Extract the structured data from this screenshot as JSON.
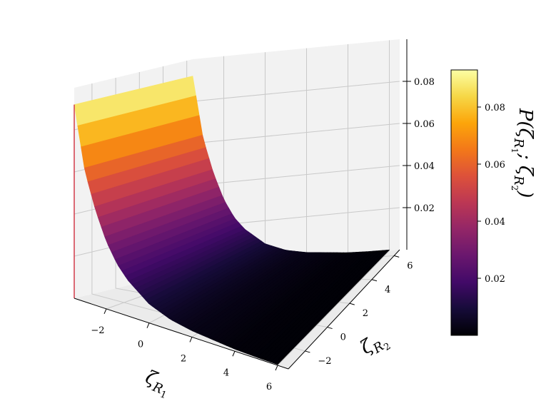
{
  "chart_data": {
    "type": "surface3d",
    "colormap": "inferno",
    "x_axis": {
      "label": "ζ",
      "label_sub": "R",
      "label_subsub": "1",
      "ticks": [
        -2,
        0,
        2,
        4,
        6
      ],
      "tick_labels": [
        "−2",
        "0",
        "2",
        "4",
        "6"
      ],
      "range": [
        -3.5,
        6.5
      ]
    },
    "y_axis": {
      "label": "ζ",
      "label_sub": "R",
      "label_subsub": "2",
      "ticks": [
        -2,
        0,
        2,
        4,
        6
      ],
      "tick_labels": [
        "−2",
        "0",
        "2",
        "4",
        "6"
      ],
      "range": [
        -3.5,
        6.5
      ]
    },
    "z_axis": {
      "ticks": [
        0.02,
        0.04,
        0.06,
        0.08
      ],
      "tick_labels": [
        "0.02",
        "0.04",
        "0.06",
        "0.08"
      ],
      "range": [
        0,
        0.1
      ]
    },
    "colorbar": {
      "label": "P(ζ_{R_1}; ζ_{R_2})",
      "label_parts": [
        "P(",
        "ζ",
        "R",
        "1",
        "; ",
        "ζ",
        "R",
        "2",
        ")"
      ],
      "ticks": [
        0.02,
        0.04,
        0.06,
        0.08
      ],
      "tick_labels": [
        "0.02",
        "0.04",
        "0.06",
        "0.08"
      ],
      "range": [
        0,
        0.093
      ]
    },
    "surface": {
      "x_range": [
        -3.5,
        6.0
      ],
      "y_range": [
        -3.5,
        6.5
      ],
      "profile_x": [
        -3.5,
        -3.0,
        -2.5,
        -2.0,
        -1.5,
        -1.0,
        0.0,
        1.0,
        2.0,
        3.0,
        4.0,
        5.0,
        6.0
      ],
      "profile_z": [
        0.092,
        0.062,
        0.045,
        0.032,
        0.023,
        0.017,
        0.009,
        0.005,
        0.003,
        0.002,
        0.001,
        0.0006,
        0.0004
      ]
    }
  }
}
